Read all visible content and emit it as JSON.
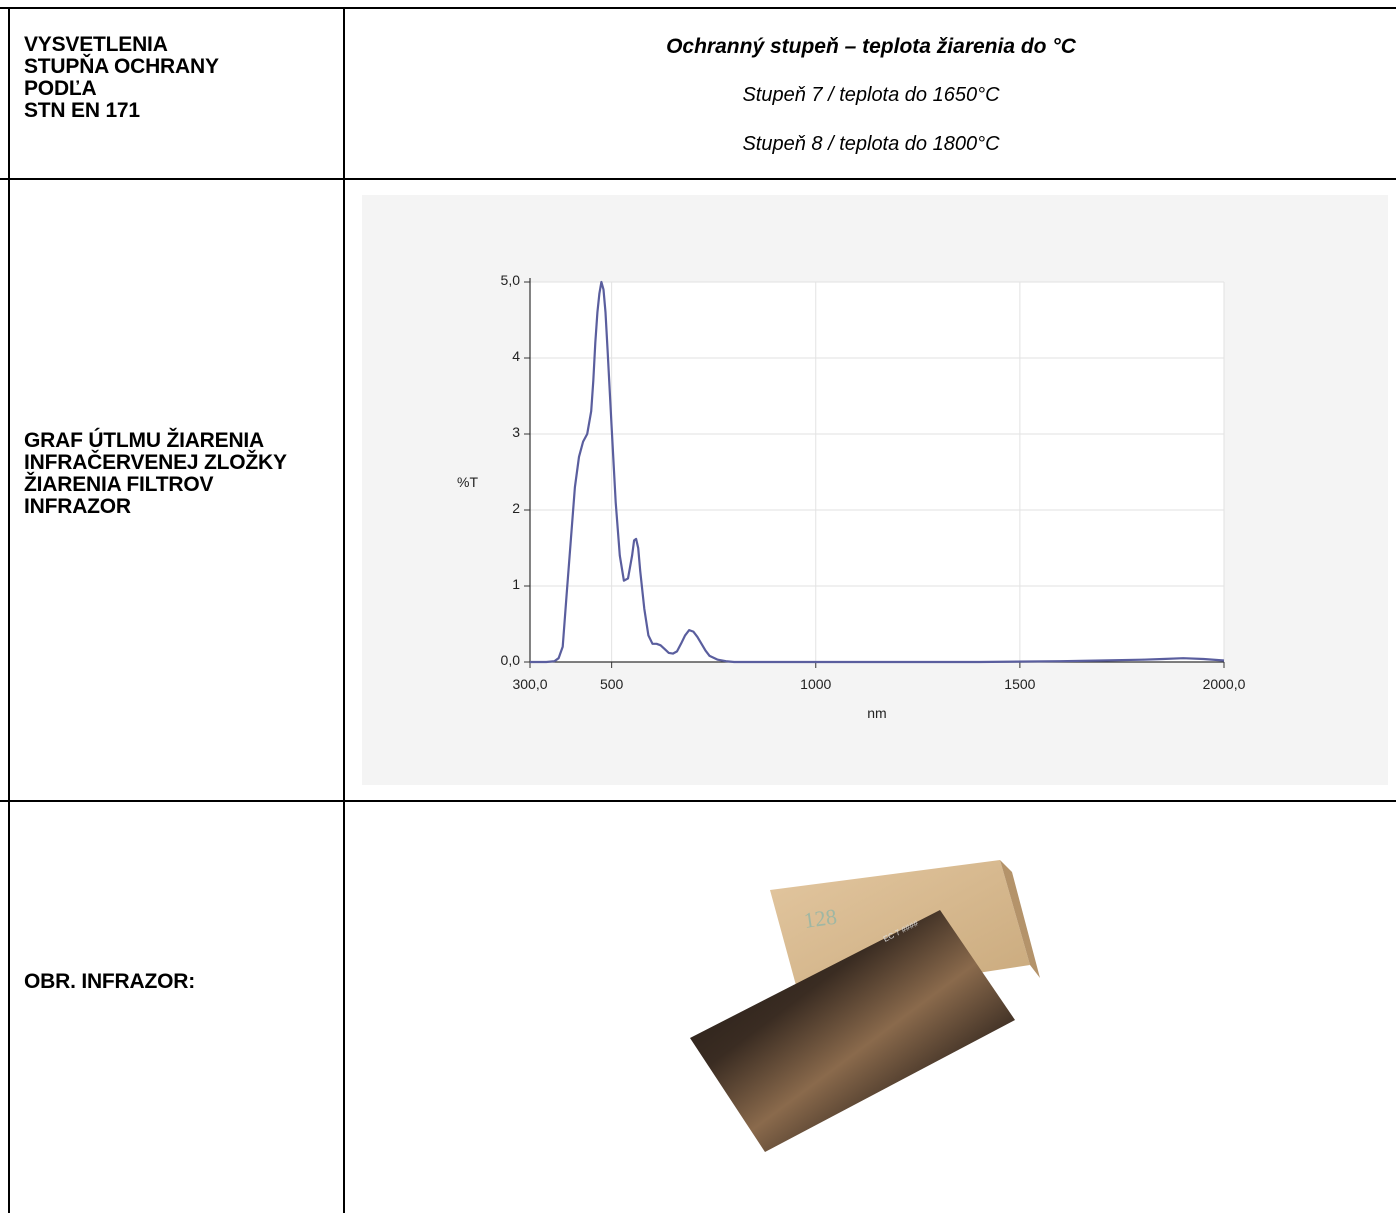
{
  "rows": {
    "header": {
      "label_lines": [
        "VYSVETLENIA",
        "STUPŇA OCHRANY",
        "PODĽA",
        "STN EN 171"
      ],
      "title": "Ochranný stupeň – teplota žiarenia do °C",
      "line1": "Stupeň 7 / teplota do 1650°C",
      "line2": "Stupeň 8 / teplota do 1800°C"
    },
    "graph": {
      "label_lines": [
        "GRAF ÚTLMU ŽIARENIA",
        "INFRAČERVENEJ ZLOŽKY",
        "ŽIARENIA FILTROV",
        "INFRAZOR"
      ]
    },
    "image": {
      "label": "OBR. INFRAZOR:",
      "box_marking": "128",
      "glass_marking": "EC 7 ####"
    }
  },
  "colors": {
    "line": "#5a5e9e",
    "chart_background": "#f4f4f4",
    "grid": "#e2e2e2"
  },
  "chart_data": {
    "type": "line",
    "xlabel": "nm",
    "ylabel": "%T",
    "xlim": [
      300,
      2000
    ],
    "ylim": [
      0,
      5
    ],
    "x_ticks": [
      300,
      500,
      1000,
      1500,
      2000
    ],
    "x_tick_labels": [
      "300,0",
      "500",
      "1000",
      "1500",
      "2000,0"
    ],
    "y_ticks": [
      0,
      1,
      2,
      3,
      4,
      5
    ],
    "y_tick_labels": [
      "0,0",
      "1",
      "2",
      "3",
      "4",
      "5,0"
    ],
    "grid": true,
    "series": [
      {
        "x": [
          300,
          340,
          360,
          370,
          380,
          390,
          400,
          410,
          420,
          430,
          440,
          450,
          455,
          460,
          465,
          470,
          475,
          480,
          485,
          490,
          500,
          510,
          520,
          530,
          540,
          550,
          555,
          560,
          565,
          570,
          580,
          590,
          600,
          610,
          620,
          630,
          640,
          650,
          660,
          670,
          680,
          690,
          700,
          710,
          720,
          730,
          740,
          760,
          780,
          800,
          900,
          1000,
          1200,
          1400,
          1600,
          1700,
          1800,
          1850,
          1900,
          1950,
          2000
        ],
        "y": [
          0,
          0,
          0.01,
          0.05,
          0.2,
          0.9,
          1.6,
          2.3,
          2.7,
          2.9,
          3.0,
          3.3,
          3.7,
          4.2,
          4.6,
          4.85,
          5.0,
          4.9,
          4.6,
          4.1,
          3.1,
          2.1,
          1.4,
          1.07,
          1.1,
          1.4,
          1.6,
          1.62,
          1.5,
          1.2,
          0.7,
          0.35,
          0.24,
          0.24,
          0.22,
          0.17,
          0.12,
          0.11,
          0.14,
          0.24,
          0.35,
          0.42,
          0.4,
          0.33,
          0.24,
          0.15,
          0.08,
          0.03,
          0.01,
          0,
          0,
          0,
          0,
          0,
          0.01,
          0.02,
          0.03,
          0.04,
          0.05,
          0.04,
          0.02
        ]
      }
    ]
  }
}
